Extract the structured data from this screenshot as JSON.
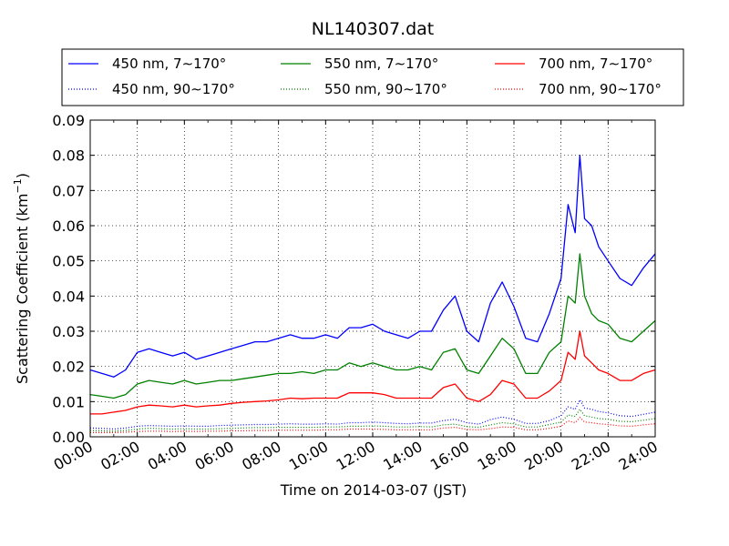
{
  "chart_data": {
    "type": "line",
    "title": "NL140307.dat",
    "xlabel": "Time on 2014-03-07 (JST)",
    "ylabel": "Scattering Coefficient (km",
    "ylabel_sup": "−1",
    "ylabel_close": ")",
    "xlim": [
      "2014-03-07 00:00",
      "2014-03-08 00:00"
    ],
    "ylim": [
      0.0,
      0.09
    ],
    "x_ticks": [
      "00:00",
      "02:00",
      "04:00",
      "06:00",
      "08:00",
      "10:00",
      "12:00",
      "14:00",
      "16:00",
      "18:00",
      "20:00",
      "22:00",
      "24:00"
    ],
    "y_ticks": [
      "0.00",
      "0.01",
      "0.02",
      "0.03",
      "0.04",
      "0.05",
      "0.06",
      "0.07",
      "0.08",
      "0.09"
    ],
    "grid": true,
    "legend_position": "top",
    "x_hours": [
      0,
      0.5,
      1,
      1.5,
      2,
      2.5,
      3,
      3.5,
      4,
      4.5,
      5,
      5.5,
      6,
      6.5,
      7,
      7.5,
      8,
      8.5,
      9,
      9.5,
      10,
      10.5,
      11,
      11.5,
      12,
      12.5,
      13,
      13.5,
      14,
      14.5,
      15,
      15.5,
      16,
      16.5,
      17,
      17.5,
      18,
      18.5,
      19,
      19.5,
      20,
      20.3,
      20.6,
      20.8,
      21,
      21.3,
      21.6,
      22,
      22.5,
      23,
      23.5,
      24
    ],
    "series": [
      {
        "name": "450 nm, 7∼170°",
        "color": "#0000ff",
        "style": "solid",
        "values": [
          0.019,
          0.018,
          0.017,
          0.019,
          0.024,
          0.025,
          0.024,
          0.023,
          0.024,
          0.022,
          0.023,
          0.024,
          0.025,
          0.026,
          0.027,
          0.027,
          0.028,
          0.029,
          0.028,
          0.028,
          0.029,
          0.028,
          0.031,
          0.031,
          0.032,
          0.03,
          0.029,
          0.028,
          0.03,
          0.03,
          0.036,
          0.04,
          0.03,
          0.027,
          0.038,
          0.044,
          0.037,
          0.028,
          0.027,
          0.035,
          0.045,
          0.066,
          0.058,
          0.08,
          0.062,
          0.06,
          0.054,
          0.05,
          0.045,
          0.043,
          0.048,
          0.052
        ]
      },
      {
        "name": "550 nm, 7∼170°",
        "color": "#008000",
        "style": "solid",
        "values": [
          0.012,
          0.0115,
          0.011,
          0.012,
          0.015,
          0.016,
          0.0155,
          0.015,
          0.016,
          0.015,
          0.0155,
          0.016,
          0.016,
          0.0165,
          0.017,
          0.0175,
          0.018,
          0.018,
          0.0185,
          0.018,
          0.019,
          0.019,
          0.021,
          0.02,
          0.021,
          0.02,
          0.019,
          0.019,
          0.02,
          0.019,
          0.024,
          0.025,
          0.019,
          0.018,
          0.023,
          0.028,
          0.025,
          0.018,
          0.018,
          0.024,
          0.027,
          0.04,
          0.038,
          0.052,
          0.04,
          0.035,
          0.033,
          0.032,
          0.028,
          0.027,
          0.03,
          0.033
        ]
      },
      {
        "name": "700 nm, 7∼170°",
        "color": "#ff0000",
        "style": "solid",
        "values": [
          0.0065,
          0.0065,
          0.007,
          0.0075,
          0.0085,
          0.009,
          0.0088,
          0.0085,
          0.009,
          0.0085,
          0.0088,
          0.009,
          0.0095,
          0.0098,
          0.01,
          0.0102,
          0.0105,
          0.011,
          0.0108,
          0.011,
          0.011,
          0.011,
          0.0125,
          0.0125,
          0.0125,
          0.012,
          0.011,
          0.011,
          0.011,
          0.011,
          0.014,
          0.015,
          0.011,
          0.01,
          0.012,
          0.016,
          0.015,
          0.011,
          0.011,
          0.013,
          0.016,
          0.024,
          0.022,
          0.03,
          0.023,
          0.021,
          0.019,
          0.018,
          0.016,
          0.016,
          0.018,
          0.019
        ]
      },
      {
        "name": "450 nm, 90∼170°",
        "color": "#0000ff",
        "style": "dotted",
        "values": [
          0.0025,
          0.0024,
          0.0022,
          0.0025,
          0.003,
          0.0032,
          0.0031,
          0.003,
          0.0031,
          0.003,
          0.003,
          0.0032,
          0.0033,
          0.0034,
          0.0035,
          0.0035,
          0.0036,
          0.0037,
          0.0036,
          0.0036,
          0.0037,
          0.0036,
          0.004,
          0.004,
          0.0042,
          0.004,
          0.0038,
          0.0037,
          0.0039,
          0.0039,
          0.0046,
          0.005,
          0.004,
          0.0036,
          0.0049,
          0.0056,
          0.005,
          0.0038,
          0.0038,
          0.0046,
          0.006,
          0.0085,
          0.0078,
          0.0105,
          0.0082,
          0.0078,
          0.0072,
          0.0068,
          0.006,
          0.0058,
          0.0064,
          0.007
        ]
      },
      {
        "name": "550 nm, 90∼170°",
        "color": "#008000",
        "style": "dotted",
        "values": [
          0.0018,
          0.0017,
          0.0016,
          0.0018,
          0.0022,
          0.0024,
          0.0023,
          0.0022,
          0.0023,
          0.0022,
          0.0022,
          0.0023,
          0.0024,
          0.0025,
          0.0026,
          0.0026,
          0.0027,
          0.0027,
          0.0027,
          0.0027,
          0.0028,
          0.0028,
          0.003,
          0.003,
          0.0031,
          0.003,
          0.0028,
          0.0028,
          0.0029,
          0.0028,
          0.0034,
          0.0036,
          0.0029,
          0.0027,
          0.0034,
          0.004,
          0.0037,
          0.0028,
          0.0028,
          0.0035,
          0.0042,
          0.0062,
          0.0058,
          0.0078,
          0.006,
          0.0056,
          0.0052,
          0.005,
          0.0044,
          0.0043,
          0.0047,
          0.0052
        ]
      },
      {
        "name": "700 nm, 90∼170°",
        "color": "#ff0000",
        "style": "dotted",
        "values": [
          0.0012,
          0.0012,
          0.0012,
          0.0013,
          0.0015,
          0.0016,
          0.0016,
          0.0015,
          0.0016,
          0.0015,
          0.0016,
          0.0016,
          0.0017,
          0.0017,
          0.0018,
          0.0018,
          0.0019,
          0.0019,
          0.0019,
          0.0019,
          0.002,
          0.002,
          0.0022,
          0.0022,
          0.0022,
          0.0021,
          0.002,
          0.002,
          0.002,
          0.002,
          0.0025,
          0.0027,
          0.0021,
          0.002,
          0.0023,
          0.0028,
          0.0027,
          0.002,
          0.002,
          0.0024,
          0.003,
          0.0045,
          0.004,
          0.0055,
          0.0042,
          0.004,
          0.0037,
          0.0035,
          0.0031,
          0.003,
          0.0034,
          0.0037
        ]
      }
    ]
  }
}
